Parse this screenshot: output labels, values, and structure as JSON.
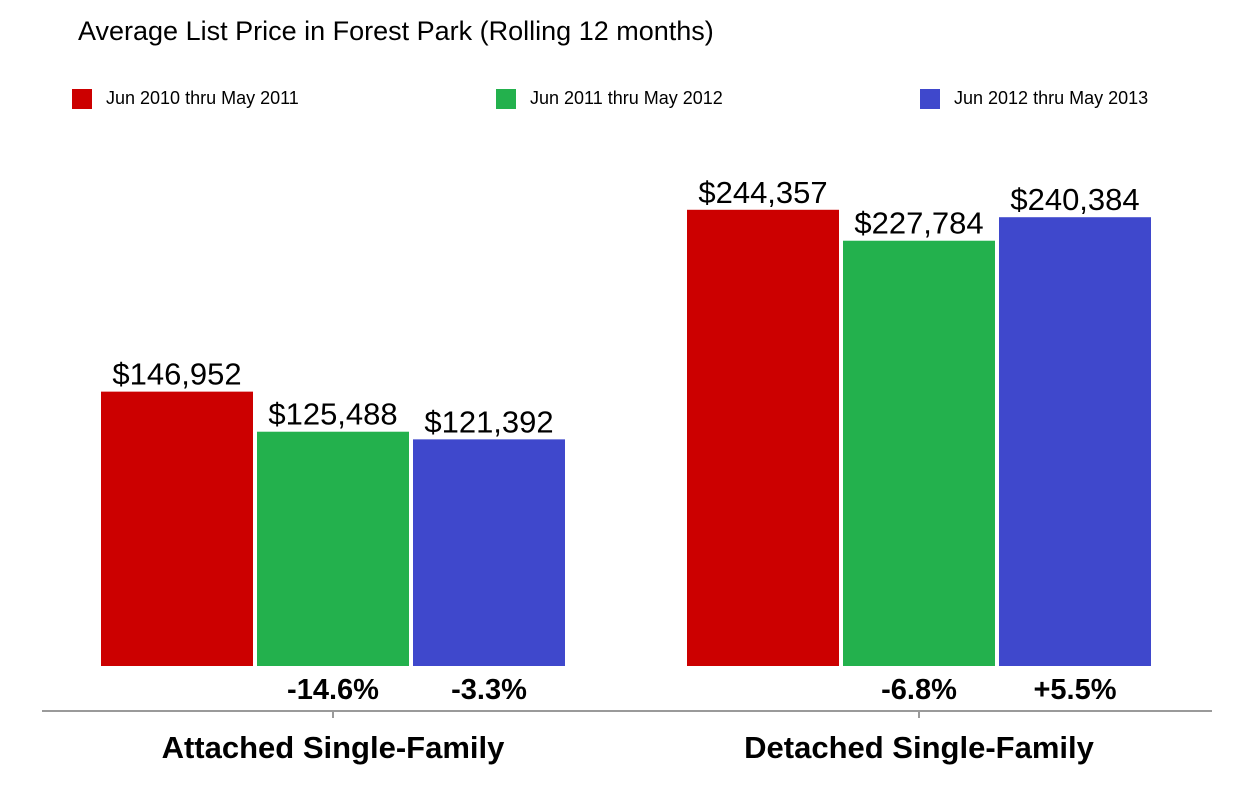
{
  "chart_data": {
    "type": "bar",
    "title": "Average List Price in Forest Park (Rolling 12 months)",
    "xlabel": "",
    "ylabel": "",
    "categories": [
      "Attached Single-Family",
      "Detached Single-Family"
    ],
    "series": [
      {
        "name": "Jun 2010 thru May 2011",
        "color": "#cc0000",
        "values": [
          146952,
          244357
        ],
        "value_labels": [
          "$146,952",
          "$244,357"
        ],
        "change_labels": [
          "",
          ""
        ]
      },
      {
        "name": "Jun 2011 thru May 2012",
        "color": "#23b14d",
        "values": [
          125488,
          227784
        ],
        "value_labels": [
          "$125,488",
          "$227,784"
        ],
        "change_labels": [
          "-14.6%",
          "-6.8%"
        ]
      },
      {
        "name": "Jun 2012 thru May 2013",
        "color": "#3f48cc",
        "values": [
          121392,
          240384
        ],
        "value_labels": [
          "$121,392",
          "$240,384"
        ],
        "change_labels": [
          "-3.3%",
          "+5.5%"
        ]
      }
    ],
    "ylim": [
      0,
      250000
    ],
    "grid": false,
    "legend_position": "top"
  }
}
